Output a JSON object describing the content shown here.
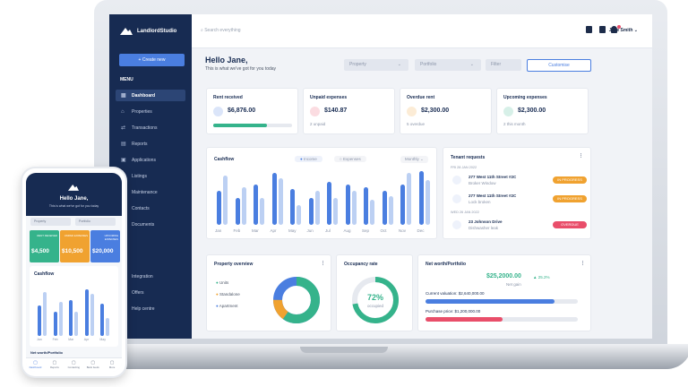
{
  "app": {
    "name": "LandlordStudio"
  },
  "topbar": {
    "search_placeholder": "Search everything",
    "user": "Jane Smith"
  },
  "sidebar": {
    "create": "+ Create new",
    "menu": "MENU",
    "items": [
      "Dashboard",
      "Properties",
      "Transactions",
      "Reports",
      "Applications",
      "Listings",
      "Maintenance",
      "Contacts",
      "Documents"
    ],
    "bottom": [
      "Integration",
      "Offers",
      "Help centre"
    ]
  },
  "greeting": {
    "title": "Hello Jane,",
    "subtitle": "This is what we've got for you today"
  },
  "filters": {
    "property": "Property",
    "portfolio": "Portfolio",
    "filter": "Filter",
    "customise": "Customise"
  },
  "kpis": [
    {
      "title": "Rent received",
      "amount": "$6,876.00",
      "note": "",
      "color": "#4a7ee0",
      "progress": 0.68
    },
    {
      "title": "Unpaid expenses",
      "amount": "$140.87",
      "note": "2 unpaid",
      "color": "#e94e6a"
    },
    {
      "title": "Overdue rent",
      "amount": "$2,300.00",
      "note": "5 overdue",
      "color": "#f0a230"
    },
    {
      "title": "Upcoming expenses",
      "amount": "$2,300.00",
      "note": "2 this month",
      "color": "#35b38b"
    }
  ],
  "cashflow": {
    "title": "Cashflow",
    "legend": [
      "Income",
      "Expenses"
    ],
    "period": "Monthly"
  },
  "chart_data": {
    "type": "bar",
    "categories": [
      "Jan",
      "Feb",
      "Mar",
      "Apr",
      "May",
      "Jun",
      "Jul",
      "Aug",
      "Sep",
      "Oct",
      "Nov",
      "Dec"
    ],
    "series": [
      {
        "name": "Income",
        "values": [
          38,
          30,
          45,
          58,
          40,
          30,
          48,
          45,
          42,
          38,
          45,
          60
        ]
      },
      {
        "name": "Expenses",
        "values": [
          55,
          42,
          30,
          52,
          22,
          38,
          30,
          38,
          28,
          32,
          58,
          50
        ]
      }
    ]
  },
  "tenant": {
    "title": "Tenant requests",
    "groups": [
      {
        "date": "FRI 28 JAN 2022",
        "items": [
          {
            "addr": "277 West 11th Street #2C",
            "desc": "Broker Window",
            "status": "IN PROGRESS",
            "color": "#f0a230"
          },
          {
            "addr": "277 West 11th Street #2C",
            "desc": "Lock broken",
            "status": "IN PROGRESS",
            "color": "#f0a230"
          }
        ]
      },
      {
        "date": "WED 26 JAN 2022",
        "items": [
          {
            "addr": "23 Johnson Drive",
            "desc": "Dishwasher leak",
            "status": "OVERDUE",
            "color": "#e94e6a"
          }
        ]
      }
    ]
  },
  "property_overview": {
    "title": "Property overview",
    "legend": [
      {
        "label": "Units",
        "color": "#35b38b"
      },
      {
        "label": "Standalone",
        "color": "#f0a230"
      },
      {
        "label": "Apartment",
        "color": "#4a7ee0"
      }
    ]
  },
  "occupancy": {
    "title": "Occupancy rate",
    "value": "72%",
    "label": "occupied",
    "fraction": 0.72
  },
  "networth": {
    "title": "Net worth/Portfolio",
    "amount": "$25,2000.00",
    "change": "25.2%",
    "sub": "Net gain",
    "current": "Current valuation: $2,640,000.00",
    "purchase": "Purchase price: $1,200,000.00"
  },
  "mobile": {
    "title": "Hello Jane,",
    "subtitle": "This is what we've got for you today",
    "property": "Property",
    "portfolio": "Portfolio",
    "tiles": [
      {
        "label": "RENT RECEIVED",
        "amount": "$4,500",
        "color": "#35b38b"
      },
      {
        "label": "UNPAID EXPENSES",
        "amount": "$10,500",
        "color": "#f0a230"
      },
      {
        "label": "UPCOMING EXPENSES",
        "amount": "$20,000",
        "color": "#4a7ee0"
      }
    ],
    "cashflow": "Cashflow",
    "months": [
      "Jan",
      "Feb",
      "Mar",
      "Apr",
      "May"
    ],
    "networth": "Net worth/Portfolio",
    "tabs": [
      "Dashboard",
      "Reports",
      "Contacting",
      "Bank feeds",
      "More"
    ]
  }
}
